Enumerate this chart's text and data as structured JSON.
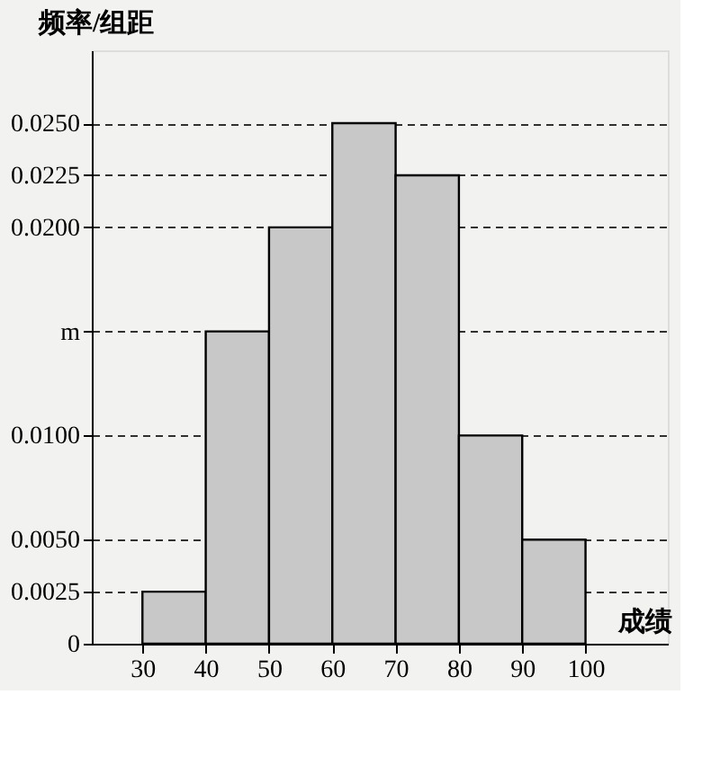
{
  "chart_data": {
    "type": "histogram",
    "xlabel": "成绩",
    "ylabel": "频率/组距",
    "bins": [
      30,
      40,
      50,
      60,
      70,
      80,
      90,
      100
    ],
    "values": [
      0.0025,
      0.015,
      0.02,
      0.025,
      0.0225,
      0.01,
      0.005
    ],
    "color": "#c8c8c8",
    "xlim": [
      22,
      113
    ],
    "xticks": [
      30,
      40,
      50,
      60,
      70,
      80,
      90,
      100
    ],
    "ylim": [
      0,
      0.0285
    ],
    "yticks": [
      0,
      {
        "value": 0.0025,
        "label": "0.0025"
      },
      {
        "value": 0.005,
        "label": "0.0050"
      },
      {
        "value": 0.01,
        "label": "0.0100"
      },
      {
        "value": 0.015,
        "label": "m"
      },
      {
        "value": 0.02,
        "label": "0.0200"
      },
      {
        "value": 0.0225,
        "label": "0.0225"
      },
      {
        "value": 0.025,
        "label": "0.0250"
      }
    ],
    "grid": "y"
  }
}
